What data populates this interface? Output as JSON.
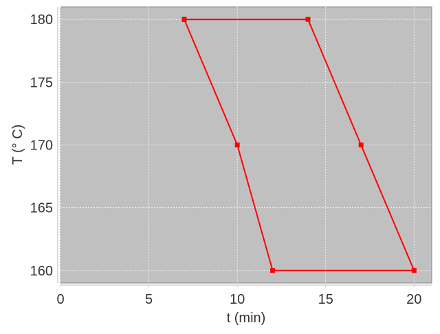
{
  "chart_data": {
    "type": "line",
    "title": "",
    "xlabel": "t (min)",
    "ylabel": "T (° C)",
    "xlim": [
      0,
      21
    ],
    "ylim": [
      159,
      181
    ],
    "xticks": [
      0,
      5,
      10,
      15,
      20
    ],
    "yticks": [
      160,
      165,
      170,
      175,
      180
    ],
    "grid": true,
    "legend": "none",
    "colors": {
      "series": "#ff0000",
      "plot_background": "#c0c0c0",
      "grid": "#ffffff"
    },
    "series": [
      {
        "x": [
          7,
          14,
          17,
          20,
          12,
          10,
          7
        ],
        "y": [
          180,
          180,
          170,
          160,
          160,
          170,
          180
        ],
        "marker": "square"
      }
    ]
  }
}
